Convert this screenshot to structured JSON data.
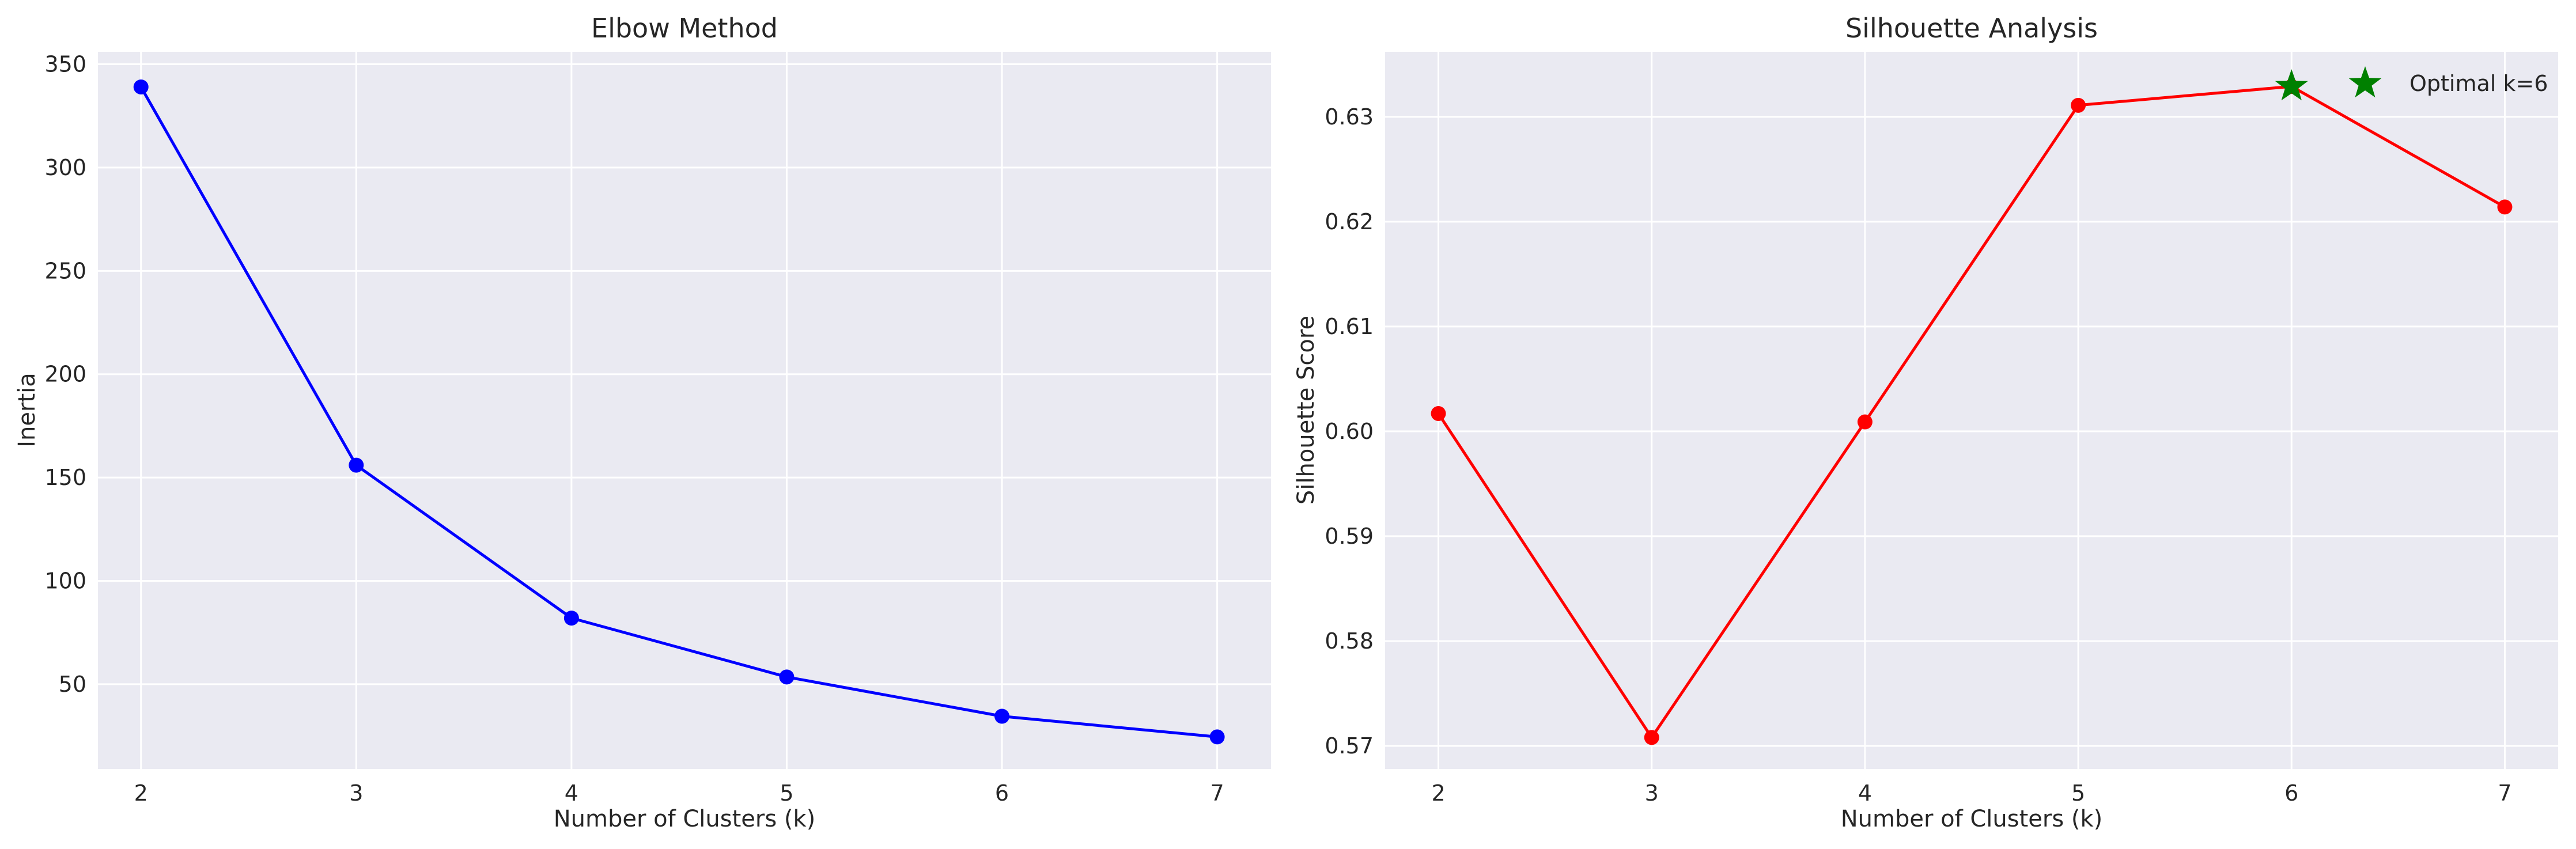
{
  "chart_data": [
    {
      "type": "line",
      "title": "Elbow Method",
      "xlabel": "Number of Clusters (k)",
      "ylabel": "Inertia",
      "x": [
        2,
        3,
        4,
        5,
        6,
        7
      ],
      "series": [
        {
          "values": [
            339,
            156,
            82,
            53.5,
            34.5,
            24.5
          ],
          "color": "#0000ff",
          "marker": "circle"
        }
      ],
      "xlim": [
        1.8,
        7.25
      ],
      "ylim": [
        9,
        356
      ],
      "xticks": [
        "2",
        "3",
        "4",
        "5",
        "6",
        "7"
      ],
      "yticks": [
        50,
        100,
        150,
        200,
        250,
        300,
        350
      ],
      "ytick_labels": [
        "50",
        "100",
        "150",
        "200",
        "250",
        "300",
        "350"
      ],
      "grid": true,
      "background": "#eaeaf2"
    },
    {
      "type": "line",
      "title": "Silhouette Analysis",
      "xlabel": "Number of Clusters (k)",
      "ylabel": "Silhouette Score",
      "x": [
        2,
        3,
        4,
        5,
        6,
        7
      ],
      "series": [
        {
          "values": [
            0.6017,
            0.5708,
            0.6009,
            0.6311,
            0.6329,
            0.6214
          ],
          "color": "#ff0000",
          "marker": "circle"
        }
      ],
      "annotation": {
        "x": 6,
        "y": 0.6329,
        "marker": "star",
        "color": "#008000",
        "legend_label": "Optimal k=6"
      },
      "legend": {
        "placement": "top-right",
        "entries": [
          "Optimal k=6"
        ]
      },
      "xlim": [
        1.75,
        7.25
      ],
      "ylim": [
        0.5678,
        0.6362
      ],
      "xticks": [
        "2",
        "3",
        "4",
        "5",
        "6",
        "7"
      ],
      "yticks": [
        0.57,
        0.58,
        0.59,
        0.6,
        0.61,
        0.62,
        0.63
      ],
      "ytick_labels": [
        "0.57",
        "0.58",
        "0.59",
        "0.60",
        "0.61",
        "0.62",
        "0.63"
      ],
      "grid": true,
      "background": "#eaeaf2"
    }
  ]
}
